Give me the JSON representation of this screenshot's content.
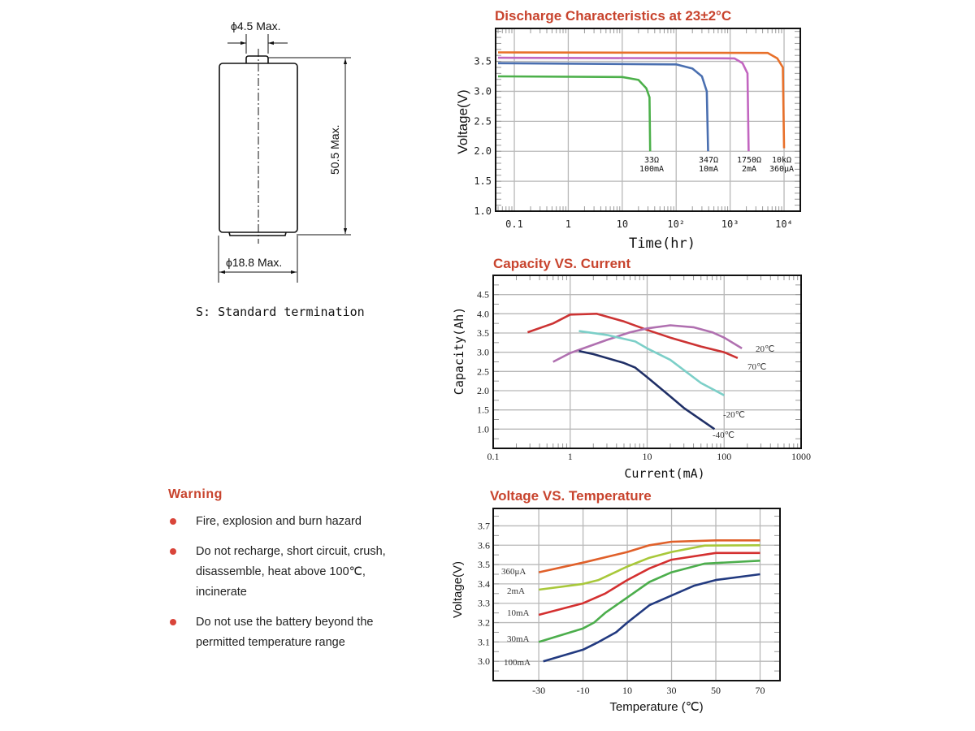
{
  "drawing": {
    "terminal_diameter": "ϕ4.5 Max.",
    "height": "50.5 Max.",
    "body_diameter": "ϕ18.8 Max.",
    "caption": "S: Standard termination"
  },
  "warning": {
    "title": "Warning",
    "items": [
      {
        "lines": [
          "Fire, explosion and burn hazard"
        ]
      },
      {
        "lines": [
          "Do not recharge, short circuit, crush,",
          "disassemble, heat above 100℃,",
          "incinerate"
        ]
      },
      {
        "lines": [
          "Do not use the battery beyond the",
          "permitted temperature range"
        ]
      }
    ]
  },
  "colors": {
    "title": "#c8442e",
    "bullet": "#d9453a",
    "grid": "#b8b8b8"
  },
  "chart_data": [
    {
      "type": "line",
      "title": "Discharge Characteristics at 23±2°C",
      "xlabel": "Time(hr)",
      "ylabel": "Voltage(V)",
      "xscale": "log",
      "xlim": [
        0.045,
        20000
      ],
      "ylim": [
        1.0,
        4.05
      ],
      "xticks": [
        {
          "v": 0.1,
          "label": "0.1"
        },
        {
          "v": 1,
          "label": "1"
        },
        {
          "v": 10,
          "label": "10"
        },
        {
          "v": 100,
          "label": "10²"
        },
        {
          "v": 1000,
          "label": "10³"
        },
        {
          "v": 10000,
          "label": "10⁴"
        }
      ],
      "yticks": [
        {
          "v": 1.0,
          "label": "1.0"
        },
        {
          "v": 1.5,
          "label": "1.5"
        },
        {
          "v": 2.0,
          "label": "2.0"
        },
        {
          "v": 2.5,
          "label": "2.5"
        },
        {
          "v": 3.0,
          "label": "3.0"
        },
        {
          "v": 3.5,
          "label": "3.5"
        }
      ],
      "grid": true,
      "series": [
        {
          "name": "33Ω",
          "sub": "100mA",
          "color": "#4cb04a",
          "points": [
            [
              0.05,
              3.25
            ],
            [
              10,
              3.24
            ],
            [
              20,
              3.19
            ],
            [
              28,
              3.05
            ],
            [
              32,
              2.9
            ],
            [
              33,
              2.0
            ]
          ]
        },
        {
          "name": "347Ω",
          "sub": "10mA",
          "color": "#4a6fb0",
          "points": [
            [
              0.05,
              3.47
            ],
            [
              100,
              3.45
            ],
            [
              200,
              3.38
            ],
            [
              300,
              3.25
            ],
            [
              370,
              3.0
            ],
            [
              390,
              2.0
            ]
          ]
        },
        {
          "name": "1750Ω",
          "sub": "2mA",
          "color": "#c266c0",
          "points": [
            [
              0.05,
              3.56
            ],
            [
              1200,
              3.55
            ],
            [
              1700,
              3.47
            ],
            [
              2100,
              3.3
            ],
            [
              2200,
              2.0
            ]
          ]
        },
        {
          "name": "10kΩ",
          "sub": "360μA",
          "color": "#e8702a",
          "points": [
            [
              0.05,
              3.65
            ],
            [
              5000,
              3.64
            ],
            [
              7500,
              3.55
            ],
            [
              9500,
              3.4
            ],
            [
              10000,
              2.05
            ]
          ]
        }
      ]
    },
    {
      "type": "line",
      "title": "Capacity VS. Current",
      "xlabel": "Current(mA)",
      "ylabel": "Capacity(Ah)",
      "xscale": "log",
      "xlim": [
        0.1,
        1000
      ],
      "ylim": [
        0.5,
        5.0
      ],
      "xticks": [
        {
          "v": 0.1,
          "label": "0.1"
        },
        {
          "v": 1,
          "label": "1"
        },
        {
          "v": 10,
          "label": "10"
        },
        {
          "v": 100,
          "label": "100"
        },
        {
          "v": 1000,
          "label": "1000"
        }
      ],
      "yticks": [
        {
          "v": 1.0,
          "label": "1.0"
        },
        {
          "v": 1.5,
          "label": "1.5"
        },
        {
          "v": 2.0,
          "label": "2.0"
        },
        {
          "v": 2.5,
          "label": "2.5"
        },
        {
          "v": 3.0,
          "label": "3.0"
        },
        {
          "v": 3.5,
          "label": "3.5"
        },
        {
          "v": 4.0,
          "label": "4.0"
        },
        {
          "v": 4.5,
          "label": "4.5"
        }
      ],
      "grid": true,
      "series": [
        {
          "name": "20℃",
          "color": "#cc3333",
          "points": [
            [
              0.28,
              3.52
            ],
            [
              0.6,
              3.75
            ],
            [
              1,
              3.98
            ],
            [
              2.2,
              4.0
            ],
            [
              5,
              3.8
            ],
            [
              10,
              3.58
            ],
            [
              20,
              3.38
            ],
            [
              50,
              3.15
            ],
            [
              100,
              3.0
            ],
            [
              150,
              2.85
            ]
          ]
        },
        {
          "name": "70℃",
          "color": "#b070b0",
          "points": [
            [
              0.6,
              2.75
            ],
            [
              1,
              2.98
            ],
            [
              3,
              3.32
            ],
            [
              6,
              3.52
            ],
            [
              10,
              3.62
            ],
            [
              20,
              3.7
            ],
            [
              40,
              3.65
            ],
            [
              70,
              3.52
            ],
            [
              100,
              3.38
            ],
            [
              170,
              3.1
            ]
          ]
        },
        {
          "name": "-20℃",
          "color": "#7ccfc8",
          "points": [
            [
              1.3,
              3.55
            ],
            [
              3,
              3.45
            ],
            [
              7,
              3.28
            ],
            [
              10,
              3.1
            ],
            [
              20,
              2.8
            ],
            [
              50,
              2.2
            ],
            [
              100,
              1.88
            ]
          ]
        },
        {
          "name": "-40℃",
          "color": "#1f2f66",
          "points": [
            [
              1.3,
              3.03
            ],
            [
              2,
              2.95
            ],
            [
              5,
              2.72
            ],
            [
              7,
              2.6
            ],
            [
              10,
              2.35
            ],
            [
              20,
              1.85
            ],
            [
              30,
              1.55
            ],
            [
              75,
              1.0
            ]
          ]
        }
      ]
    },
    {
      "type": "line",
      "title": "Voltage VS. Temperature",
      "xlabel": "Temperature (℃)",
      "ylabel": "Voltage(V)",
      "xscale": "linear",
      "xlim": [
        -50.6,
        79
      ],
      "ylim": [
        2.9,
        3.79
      ],
      "xticks": [
        {
          "v": -30,
          "label": "-30"
        },
        {
          "v": -10,
          "label": "-10"
        },
        {
          "v": 10,
          "label": "10"
        },
        {
          "v": 30,
          "label": "30"
        },
        {
          "v": 50,
          "label": "50"
        },
        {
          "v": 70,
          "label": "70"
        }
      ],
      "yticks": [
        {
          "v": 3.0,
          "label": "3.0"
        },
        {
          "v": 3.1,
          "label": "3.1"
        },
        {
          "v": 3.2,
          "label": "3.2"
        },
        {
          "v": 3.3,
          "label": "3.3"
        },
        {
          "v": 3.4,
          "label": "3.4"
        },
        {
          "v": 3.5,
          "label": "3.5"
        },
        {
          "v": 3.6,
          "label": "3.6"
        },
        {
          "v": 3.7,
          "label": "3.7"
        }
      ],
      "grid": true,
      "series": [
        {
          "name": "360μA",
          "color": "#e0602a",
          "points": [
            [
              -30,
              3.46
            ],
            [
              -10,
              3.51
            ],
            [
              10,
              3.565
            ],
            [
              20,
              3.6
            ],
            [
              30,
              3.618
            ],
            [
              50,
              3.625
            ],
            [
              70,
              3.625
            ]
          ]
        },
        {
          "name": "2mA",
          "color": "#a8c83a",
          "points": [
            [
              -30,
              3.37
            ],
            [
              -10,
              3.4
            ],
            [
              -3,
              3.42
            ],
            [
              10,
              3.49
            ],
            [
              20,
              3.535
            ],
            [
              30,
              3.565
            ],
            [
              45,
              3.598
            ],
            [
              70,
              3.6
            ]
          ]
        },
        {
          "name": "10mA",
          "color": "#d43030",
          "points": [
            [
              -30,
              3.24
            ],
            [
              -20,
              3.27
            ],
            [
              -10,
              3.3
            ],
            [
              0,
              3.35
            ],
            [
              10,
              3.42
            ],
            [
              20,
              3.48
            ],
            [
              30,
              3.525
            ],
            [
              50,
              3.56
            ],
            [
              70,
              3.56
            ]
          ]
        },
        {
          "name": "30mA",
          "color": "#4cae4c",
          "points": [
            [
              -30,
              3.1
            ],
            [
              -10,
              3.17
            ],
            [
              -5,
              3.2
            ],
            [
              0,
              3.25
            ],
            [
              10,
              3.33
            ],
            [
              20,
              3.41
            ],
            [
              30,
              3.46
            ],
            [
              45,
              3.505
            ],
            [
              70,
              3.52
            ]
          ]
        },
        {
          "name": "100mA",
          "color": "#223a80",
          "points": [
            [
              -28,
              3.0
            ],
            [
              -10,
              3.06
            ],
            [
              -3,
              3.1
            ],
            [
              5,
              3.15
            ],
            [
              10,
              3.2
            ],
            [
              20,
              3.29
            ],
            [
              30,
              3.34
            ],
            [
              40,
              3.39
            ],
            [
              50,
              3.42
            ],
            [
              70,
              3.45
            ]
          ]
        }
      ]
    }
  ]
}
